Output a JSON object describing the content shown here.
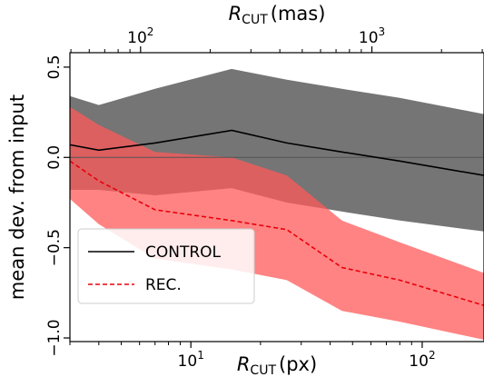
{
  "chart_data": {
    "type": "area",
    "xscale": "log",
    "xlim": [
      3.0,
      185
    ],
    "ylim": [
      -1.02,
      0.58
    ],
    "xlabel": {
      "main": "R",
      "sub": "CUT",
      "unit": "(px)"
    },
    "x2label": {
      "main": "R",
      "sub": "CUT",
      "unit": "(mas)"
    },
    "yticks": [
      {
        "value": 0.5,
        "label": "0.5"
      },
      {
        "value": 0.0,
        "label": "0.0"
      },
      {
        "value": -0.5,
        "label": "−0.5"
      },
      {
        "value": -1.0,
        "label": "−1.0"
      }
    ],
    "ylabel": "mean dev. from input",
    "xticks": [
      {
        "value": 10,
        "label": "10",
        "sup": "1"
      },
      {
        "value": 100,
        "label": "10",
        "sup": "2"
      }
    ],
    "x2ticks": [
      {
        "value": 6.06,
        "label": "10",
        "sup": "2"
      },
      {
        "value": 60.6,
        "label": "10",
        "sup": "3"
      }
    ],
    "grid": false,
    "zero_line": true,
    "legend_position": "lower-left",
    "series": [
      {
        "name": "CONTROL",
        "style": "solid",
        "color": "#000000",
        "band_color": "#666666",
        "x": [
          3.0,
          4.0,
          7.0,
          15.0,
          26.0,
          45.0,
          80.0,
          185.0
        ],
        "mean": [
          0.07,
          0.04,
          0.08,
          0.15,
          0.08,
          0.03,
          -0.02,
          -0.1
        ],
        "upper": [
          0.34,
          0.29,
          0.38,
          0.49,
          0.43,
          0.38,
          0.33,
          0.24
        ],
        "lower": [
          -0.18,
          -0.18,
          -0.21,
          -0.17,
          -0.25,
          -0.3,
          -0.35,
          -0.41
        ]
      },
      {
        "name": "REC.",
        "style": "dashed",
        "color": "#e8000b",
        "band_color": "#ff5a5a",
        "x": [
          3.0,
          4.0,
          7.0,
          15.0,
          26.0,
          45.0,
          80.0,
          185.0
        ],
        "mean": [
          -0.02,
          -0.13,
          -0.29,
          -0.35,
          -0.4,
          -0.61,
          -0.68,
          -0.82
        ],
        "upper": [
          0.28,
          0.18,
          0.03,
          0.0,
          -0.1,
          -0.35,
          -0.47,
          -0.64
        ],
        "lower": [
          -0.23,
          -0.37,
          -0.56,
          -0.62,
          -0.68,
          -0.85,
          -0.91,
          -1.01
        ]
      }
    ]
  }
}
